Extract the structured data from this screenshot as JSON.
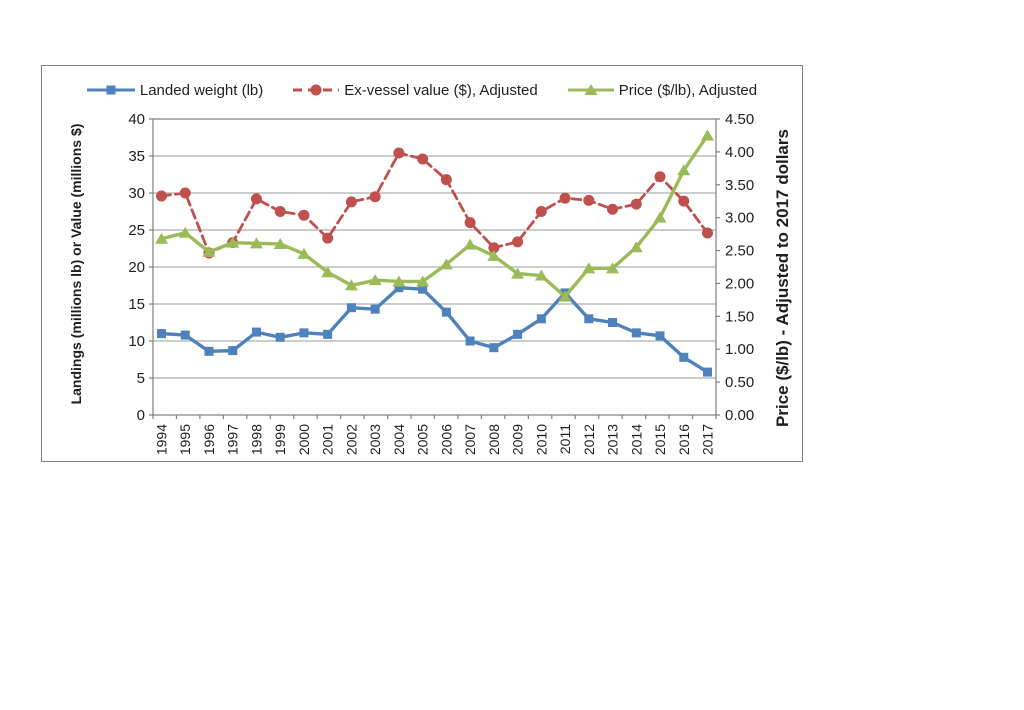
{
  "chart_data": {
    "type": "line",
    "title": "",
    "categories": [
      "1994",
      "1995",
      "1996",
      "1997",
      "1998",
      "1999",
      "2000",
      "2001",
      "2002",
      "2003",
      "2004",
      "2005",
      "2006",
      "2007",
      "2008",
      "2009",
      "2010",
      "2011",
      "2012",
      "2013",
      "2014",
      "2015",
      "2016",
      "2017"
    ],
    "series": [
      {
        "name": "Landed weight (lb)",
        "axis": "left",
        "color": "#4F81BD",
        "marker": "square",
        "line": "solid",
        "values": [
          11.0,
          10.8,
          8.6,
          8.7,
          11.2,
          10.5,
          11.1,
          10.9,
          14.5,
          14.3,
          17.2,
          17.0,
          13.9,
          10.0,
          9.1,
          10.9,
          13.0,
          16.5,
          13.0,
          12.5,
          11.1,
          10.7,
          7.8,
          5.8
        ]
      },
      {
        "name": "Ex-vessel value ($), Adjusted",
        "axis": "left",
        "color": "#C0504D",
        "marker": "circle",
        "line": "dashed",
        "values": [
          29.6,
          30.0,
          21.9,
          23.3,
          29.2,
          27.5,
          27.0,
          23.9,
          28.8,
          29.5,
          35.4,
          34.6,
          31.8,
          26.0,
          22.6,
          23.4,
          27.5,
          29.3,
          29.0,
          27.8,
          28.5,
          32.2,
          28.9,
          24.6
        ]
      },
      {
        "name": "Price ($/lb), Adjusted",
        "axis": "right",
        "color": "#9BBB59",
        "marker": "triangle",
        "line": "solid",
        "values": [
          2.68,
          2.77,
          2.48,
          2.62,
          2.61,
          2.6,
          2.45,
          2.17,
          1.97,
          2.05,
          2.03,
          2.03,
          2.29,
          2.59,
          2.42,
          2.15,
          2.12,
          1.8,
          2.23,
          2.23,
          2.55,
          3.0,
          3.72,
          4.25
        ]
      }
    ],
    "left_axis": {
      "label": "Landings (millions lb) or Value (millions $)",
      "min": 0,
      "max": 40,
      "step": 5,
      "decimals": 0
    },
    "right_axis": {
      "label": "Price ($/lb) - Adjusted to 2017 dollars",
      "min": 0,
      "max": 4.5,
      "step": 0.5,
      "decimals": 2
    },
    "grid": true,
    "legend_position": "top",
    "style": {
      "grid_color": "#9b9b9b",
      "axis_color": "#808080",
      "text_color": "#1f1f1f"
    }
  }
}
